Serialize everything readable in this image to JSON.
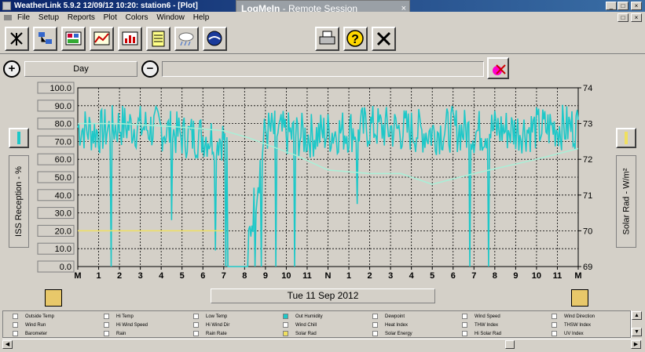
{
  "window": {
    "title": "WeatherLink 5.9.2  12/09/12  10:20: station6 - [Plot]"
  },
  "remote": {
    "brand": "LogMeIn",
    "label": " - Remote Session"
  },
  "menu": [
    "File",
    "Setup",
    "Reports",
    "Plot",
    "Colors",
    "Window",
    "Help"
  ],
  "toolbar": {
    "left_icons": [
      "station-icon",
      "network-icon",
      "bulletin-icon",
      "summary-icon",
      "chart-icon",
      "notes-icon",
      "forecast-icon",
      "noaa-icon"
    ],
    "right_icons": [
      "print-icon",
      "help-icon",
      "close-icon"
    ]
  },
  "controls": {
    "range_label": "Day",
    "zoom_in": "+",
    "zoom_out": "−"
  },
  "plot": {
    "date_label": "Tue 11 Sep 2012",
    "left_axis_label": "ISS Reception - %",
    "right_axis_label": "Solar Rad - W/m²",
    "left_ticks": [
      "100.0",
      "90.0",
      "80.0",
      "70.0",
      "60.0",
      "50.0",
      "40.0",
      "30.0",
      "20.0",
      "10.0",
      "0.0"
    ],
    "right_ticks": [
      "74",
      "73",
      "72",
      "71",
      "70",
      "69"
    ],
    "x_ticks": [
      "M",
      "1",
      "2",
      "3",
      "4",
      "5",
      "6",
      "7",
      "8",
      "9",
      "10",
      "11",
      "N",
      "1",
      "2",
      "3",
      "4",
      "5",
      "6",
      "7",
      "8",
      "9",
      "10",
      "11",
      "M"
    ],
    "colors": {
      "reception": "#1ec8c8",
      "trend": "#a8f0d8",
      "solar": "#f0e060",
      "plot_bg": "#d4d0c8",
      "grid": "#000000"
    }
  },
  "chart_data": {
    "type": "line",
    "x": [
      "0",
      "1",
      "2",
      "3",
      "4",
      "5",
      "6",
      "7",
      "8",
      "9",
      "10",
      "11",
      "12",
      "13",
      "14",
      "15",
      "16",
      "17",
      "18",
      "19",
      "20",
      "21",
      "22",
      "23",
      "24"
    ],
    "series": [
      {
        "name": "ISS Reception - %",
        "values": [
          78,
          75,
          79,
          78,
          77,
          73,
          73,
          72,
          0,
          76,
          74,
          73,
          75,
          76,
          78,
          77,
          76,
          75,
          77,
          75,
          77,
          76,
          77,
          78,
          78
        ]
      },
      {
        "name": "Solar Rad - W/m²",
        "values": [
          20,
          20,
          20,
          20,
          20,
          20,
          20,
          20,
          null,
          null,
          null,
          null,
          null,
          null,
          null,
          null,
          null,
          null,
          null,
          null,
          null,
          null,
          null,
          null,
          null
        ]
      }
    ],
    "ylim": [
      0,
      100
    ],
    "y2lim": [
      69,
      74
    ]
  },
  "legend": [
    [
      "Outside Temp",
      "Hi Temp",
      "Low Temp",
      "Out Humidity",
      "Dewpoint",
      "Wind Speed",
      "Wind Direction"
    ],
    [
      "Wind Run",
      "Hi Wind Speed",
      "Hi Wind Dir",
      "Wind Chill",
      "Heat Index",
      "THW Index",
      "THSW Index"
    ],
    [
      "Barometer",
      "Rain",
      "Rain Rate",
      "Solar Rad",
      "Solar Energy",
      "Hi Solar Rad",
      "UV Index"
    ]
  ],
  "legend_checked": {
    "Out Humidity": "#1ec8c8",
    "Solar Rad": "#f0e060"
  }
}
